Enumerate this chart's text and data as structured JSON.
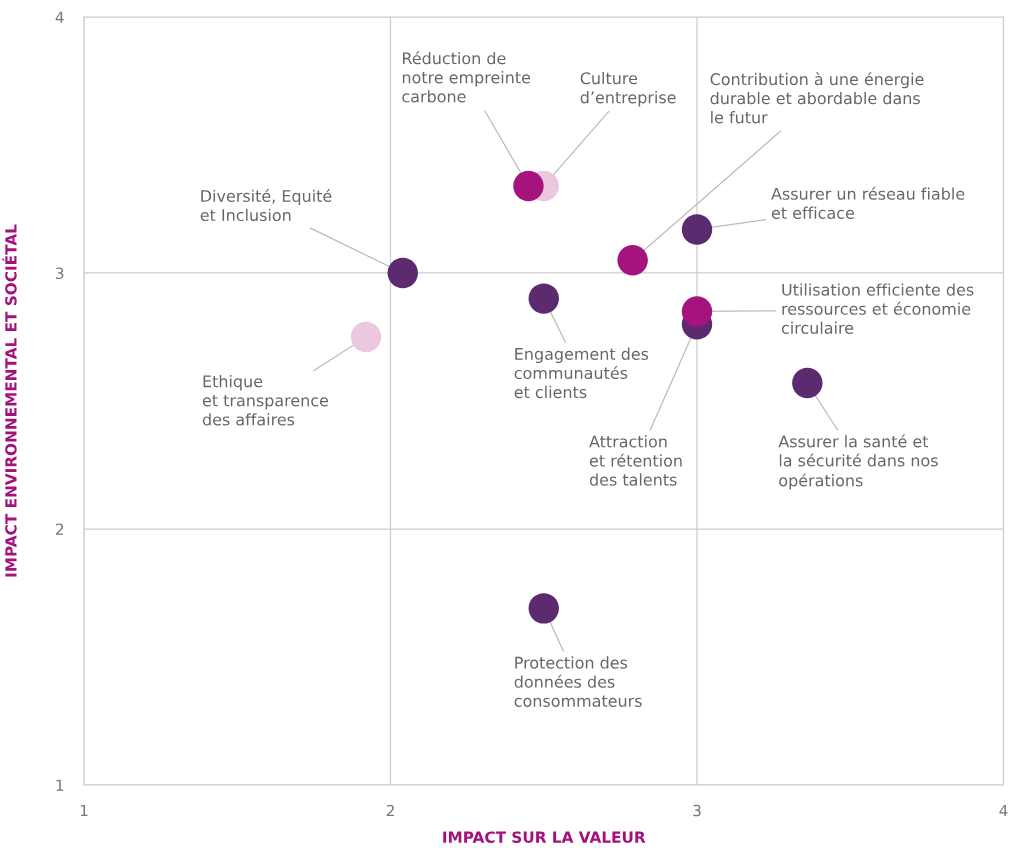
{
  "chart_data": {
    "type": "scatter",
    "xlabel": "IMPACT SUR LA VALEUR",
    "ylabel": "IMPACT ENVIRONNEMENTAL ET SOCIÉTAL",
    "xlim": [
      1,
      4
    ],
    "ylim": [
      1,
      4
    ],
    "xticks": [
      1,
      2,
      3,
      4
    ],
    "yticks": [
      1,
      2,
      3,
      4
    ],
    "grid": true,
    "marker": "circle",
    "legend": false,
    "series": [
      {
        "color": "#ecc8e0",
        "x": [
          2.5,
          1.92
        ],
        "values": [
          3.34,
          2.75
        ]
      },
      {
        "color": "#5b2a6f",
        "x": [
          3.0,
          2.04,
          2.5,
          3.0,
          3.36,
          2.5
        ],
        "values": [
          3.17,
          3.0,
          2.9,
          2.8,
          2.57,
          1.69
        ]
      },
      {
        "color": "#a5137f",
        "x": [
          2.45,
          2.79,
          3.0
        ],
        "values": [
          3.34,
          3.05,
          2.85
        ]
      }
    ],
    "annotations": [
      {
        "text": "Réduction de\nnotre empreinte\ncarbone",
        "x": 2.45,
        "y": 3.34
      },
      {
        "text": "Culture\nd’entreprise",
        "x": 2.5,
        "y": 3.34
      },
      {
        "text": "Contribution à une énergie\ndurable et abordable dans\nle futur",
        "x": 2.79,
        "y": 3.05
      },
      {
        "text": "Assurer un réseau fiable\net efficace",
        "x": 3.0,
        "y": 3.17
      },
      {
        "text": "Diversité, Equité\net Inclusion",
        "x": 2.04,
        "y": 3.0
      },
      {
        "text": "Ethique\net transparence\ndes affaires",
        "x": 1.92,
        "y": 2.75
      },
      {
        "text": "Engagement des\ncommunautés\net clients",
        "x": 2.5,
        "y": 2.9
      },
      {
        "text": "Utilisation efficiente des\nressources et économie\ncirculaire",
        "x": 3.0,
        "y": 2.85
      },
      {
        "text": "Attraction\net rétention\ndes talents",
        "x": 3.0,
        "y": 2.8
      },
      {
        "text": "Assurer la santé et\nla sécurité dans nos\nopérations",
        "x": 3.36,
        "y": 2.57
      },
      {
        "text": "Protection des\ndonnées des\nconsommateurs",
        "x": 2.5,
        "y": 1.69
      }
    ]
  }
}
